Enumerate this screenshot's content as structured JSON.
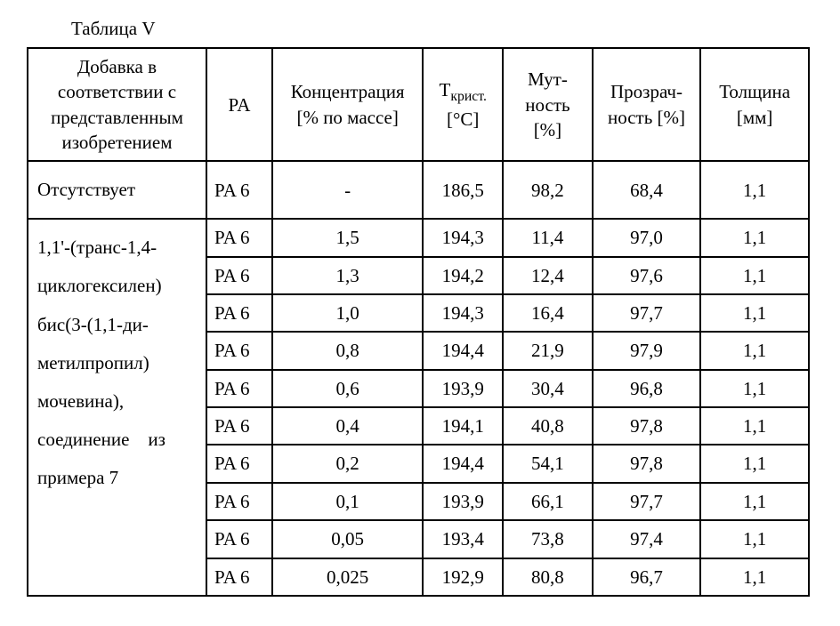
{
  "caption": "Таблица V",
  "headers": {
    "additive": "Добавка в соответствии с представленным изобретением",
    "pa": "PA",
    "concentration": "Концентрация [% по массе]",
    "t_cryst_prefix": "T",
    "t_cryst_sub": "крист.",
    "t_cryst_unit": "[°C]",
    "haze": "Мут-ность [%]",
    "clarity": "Прозрач-ность [%]",
    "thickness": "Толщина [мм]"
  },
  "row_none": {
    "additive": "Отсутствует",
    "pa": "PA 6",
    "conc": "-",
    "tcr": "186,5",
    "haze": "98,2",
    "clar": "68,4",
    "thick": "1,1"
  },
  "compound_additive_lines": [
    "1,1'-(транс-1,4-",
    "циклогексилен)",
    "бис(3-(1,1-ди-",
    "метилпропил)",
    "мочевина),",
    "соединение    из",
    "примера 7"
  ],
  "rows": [
    {
      "pa": "PA 6",
      "conc": "1,5",
      "tcr": "194,3",
      "haze": "11,4",
      "clar": "97,0",
      "thick": "1,1"
    },
    {
      "pa": "PA 6",
      "conc": "1,3",
      "tcr": "194,2",
      "haze": "12,4",
      "clar": "97,6",
      "thick": "1,1"
    },
    {
      "pa": "PA 6",
      "conc": "1,0",
      "tcr": "194,3",
      "haze": "16,4",
      "clar": "97,7",
      "thick": "1,1"
    },
    {
      "pa": "PA 6",
      "conc": "0,8",
      "tcr": "194,4",
      "haze": "21,9",
      "clar": "97,9",
      "thick": "1,1"
    },
    {
      "pa": "PA 6",
      "conc": "0,6",
      "tcr": "193,9",
      "haze": "30,4",
      "clar": "96,8",
      "thick": "1,1"
    },
    {
      "pa": "PA 6",
      "conc": "0,4",
      "tcr": "194,1",
      "haze": "40,8",
      "clar": "97,8",
      "thick": "1,1"
    },
    {
      "pa": "PA 6",
      "conc": "0,2",
      "tcr": "194,4",
      "haze": "54,1",
      "clar": "97,8",
      "thick": "1,1"
    },
    {
      "pa": "PA 6",
      "conc": "0,1",
      "tcr": "193,9",
      "haze": "66,1",
      "clar": "97,7",
      "thick": "1,1"
    },
    {
      "pa": "PA 6",
      "conc": "0,05",
      "tcr": "193,4",
      "haze": "73,8",
      "clar": "97,4",
      "thick": "1,1"
    },
    {
      "pa": "PA 6",
      "conc": "0,025",
      "tcr": "192,9",
      "haze": "80,8",
      "clar": "96,7",
      "thick": "1,1"
    }
  ]
}
